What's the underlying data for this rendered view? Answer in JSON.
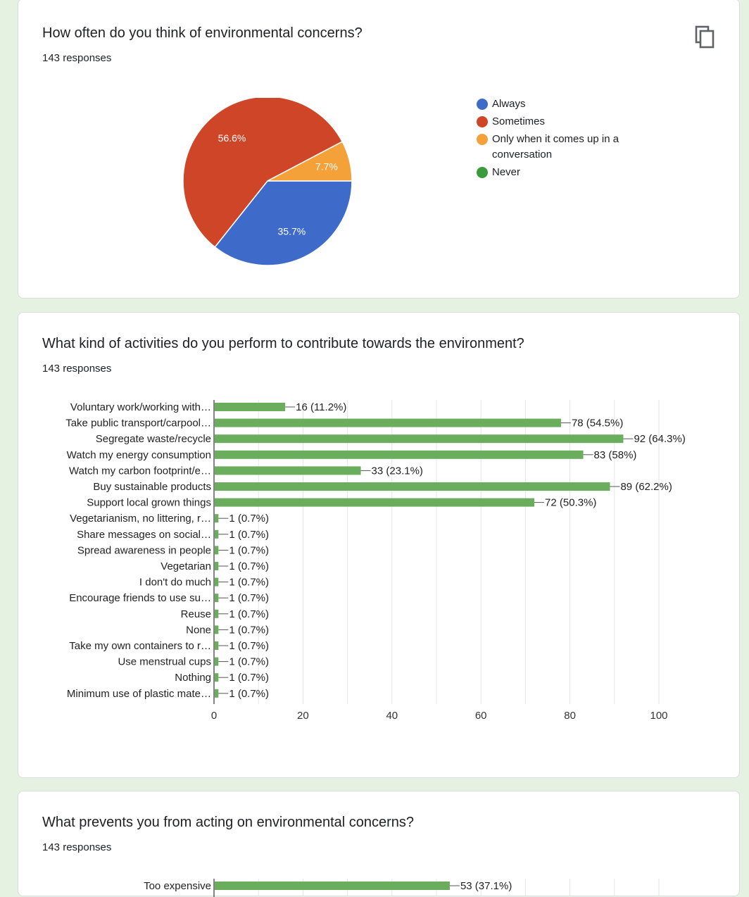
{
  "cards": [
    {
      "title": "How often do you think of environmental concerns?",
      "responses": "143 responses",
      "copy_icon": "copy-icon",
      "chart_data": {
        "type": "pie",
        "slices": [
          {
            "label": "Always",
            "percent": 35.7,
            "color": "#3e6bc9"
          },
          {
            "label": "Sometimes",
            "percent": 56.6,
            "color": "#cf4527"
          },
          {
            "label": "Only when it comes up in a conversation",
            "percent": 7.7,
            "color": "#f4a139"
          },
          {
            "label": "Never",
            "percent": 0,
            "color": "#3b9b3b"
          }
        ],
        "legend_lines": [
          [
            "Always"
          ],
          [
            "Sometimes"
          ],
          [
            "Only when it comes up in a",
            "conversation"
          ],
          [
            "Never"
          ]
        ],
        "slice_labels": [
          "35.7%",
          "56.6%",
          "7.7%",
          ""
        ],
        "legend_position": "right"
      }
    },
    {
      "title": "What kind of activities do you perform to contribute towards the environment?",
      "responses": "143 responses",
      "chart_data": {
        "type": "bar",
        "orientation": "horizontal",
        "bar_color": "#6aae5d",
        "categories": [
          "Voluntary work/working with…",
          "Take public transport/carpool…",
          "Segregate waste/recycle",
          "Watch my energy consumption",
          "Watch my carbon footprint/e…",
          "Buy sustainable products",
          "Support local grown things",
          "Vegetarianism, no littering, r…",
          "Share messages on social…",
          "Spread awareness in people",
          "Vegetarian",
          "I don't do much",
          "Encourage friends to use su…",
          "Reuse",
          "None",
          "Take my own containers to r…",
          "Use menstrual cups",
          "Nothing",
          "Minimum use of plastic mate…"
        ],
        "values": [
          16,
          78,
          92,
          83,
          33,
          89,
          72,
          1,
          1,
          1,
          1,
          1,
          1,
          1,
          1,
          1,
          1,
          1,
          1
        ],
        "data_labels": [
          "16 (11.2%)",
          "78 (54.5%)",
          "92 (64.3%)",
          "83 (58%)",
          "33 (23.1%)",
          "89 (62.2%)",
          "72 (50.3%)",
          "1 (0.7%)",
          "1 (0.7%)",
          "1 (0.7%)",
          "1 (0.7%)",
          "1 (0.7%)",
          "1 (0.7%)",
          "1 (0.7%)",
          "1 (0.7%)",
          "1 (0.7%)",
          "1 (0.7%)",
          "1 (0.7%)",
          "1 (0.7%)"
        ],
        "xlim": [
          0,
          100
        ],
        "xticks": [
          "0",
          "20",
          "40",
          "60",
          "80",
          "100"
        ],
        "grid": true
      }
    },
    {
      "title": "What prevents you from acting on environmental concerns?",
      "responses": "143 responses",
      "chart_data": {
        "type": "bar",
        "orientation": "horizontal",
        "bar_color": "#6aae5d",
        "categories": [
          "Too expensive"
        ],
        "values": [
          53
        ],
        "data_labels": [
          "53 (37.1%)"
        ],
        "xlim": [
          0,
          100
        ],
        "grid": true
      }
    }
  ]
}
